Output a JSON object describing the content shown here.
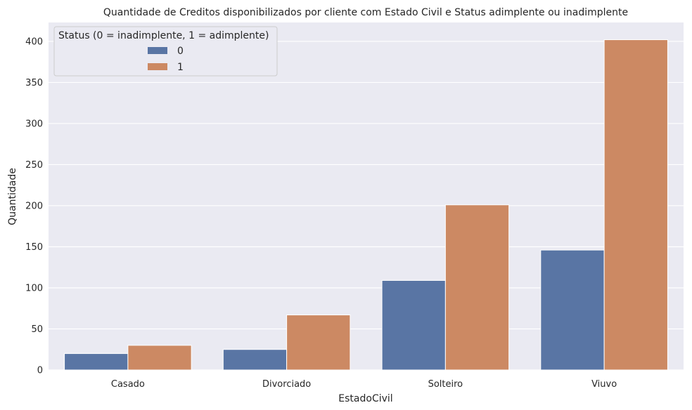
{
  "chart_data": {
    "type": "bar",
    "title": "Quantidade de Creditos disponibilizados por cliente com Estado Civil e Status adimplente ou inadimplente",
    "xlabel": "EstadoCivil",
    "ylabel": "Quantidade",
    "categories": [
      "Casado",
      "Divorciado",
      "Solteiro",
      "Viuvo"
    ],
    "series": [
      {
        "name": "0",
        "values": [
          20,
          25,
          109,
          146
        ],
        "color": "#5975a4"
      },
      {
        "name": "1",
        "values": [
          30,
          67,
          201,
          402
        ],
        "color": "#cc8963"
      }
    ],
    "ylim": [
      0,
      423
    ],
    "yticks": [
      0,
      50,
      100,
      150,
      200,
      250,
      300,
      350,
      400
    ],
    "grid": true,
    "legend": {
      "title": "Status (0 = inadimplente, 1 = adimplente)",
      "placement": "top-left"
    },
    "colors": {
      "plot_background": "#eaeaf2",
      "grid": "#ffffff"
    }
  }
}
